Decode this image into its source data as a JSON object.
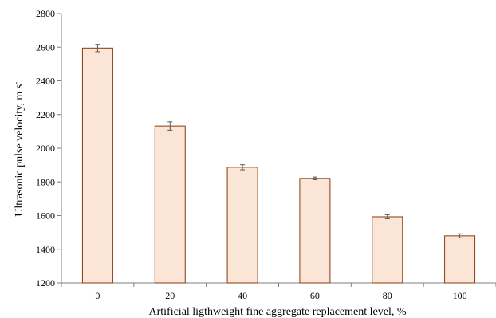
{
  "chart_data": {
    "type": "bar",
    "categories": [
      "0",
      "20",
      "40",
      "60",
      "80",
      "100"
    ],
    "values": [
      2595,
      2132,
      1887,
      1821,
      1593,
      1480
    ],
    "errors": [
      22,
      25,
      15,
      8,
      12,
      12
    ],
    "ylim": [
      1200,
      2800
    ],
    "yticks": [
      1200,
      1400,
      1600,
      1800,
      2000,
      2200,
      2400,
      2600,
      2800
    ],
    "xlabel": "Artificial ligthweight fine aggregate replacement level, %",
    "ylabel_main": "Ultrasonic pulse velocity, m s",
    "ylabel_sup": "-1",
    "grid": false,
    "colors": {
      "bar_fill": "#fbe5d6",
      "bar_stroke": "#8b3a0e",
      "error_bar": "#595959",
      "axis": "#7f7f7f"
    }
  }
}
